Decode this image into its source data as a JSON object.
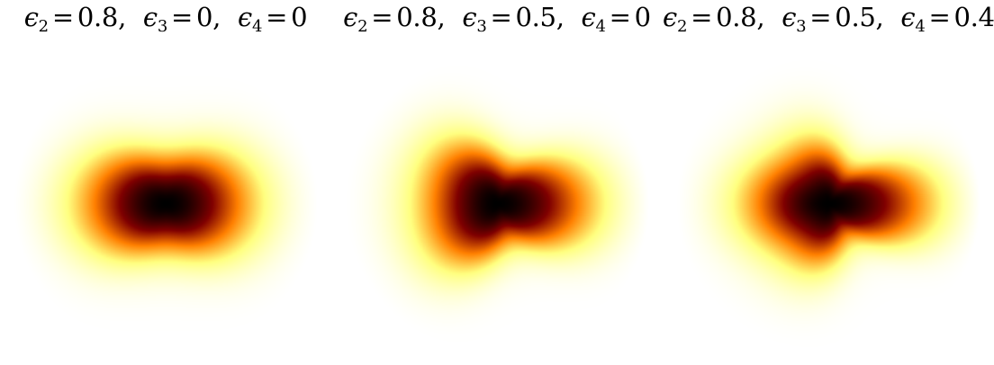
{
  "panels": [
    {
      "terms": [
        {
          "sub": "2",
          "value": "0.8"
        },
        {
          "sub": "3",
          "value": "0"
        },
        {
          "sub": "4",
          "value": "0"
        }
      ],
      "params": {
        "e2": 0.8,
        "e3": 0.0,
        "e4": 0.0
      }
    },
    {
      "terms": [
        {
          "sub": "2",
          "value": "0.8"
        },
        {
          "sub": "3",
          "value": "0.5"
        },
        {
          "sub": "4",
          "value": "0"
        }
      ],
      "params": {
        "e2": 0.8,
        "e3": 0.5,
        "e4": 0.0
      }
    },
    {
      "terms": [
        {
          "sub": "2",
          "value": "0.8"
        },
        {
          "sub": "3",
          "value": "0.5"
        },
        {
          "sub": "4",
          "value": "0.4"
        }
      ],
      "params": {
        "e2": 0.8,
        "e3": 0.5,
        "e4": 0.4
      }
    }
  ],
  "symbol": "ϵ",
  "colormap": "afmhot"
}
